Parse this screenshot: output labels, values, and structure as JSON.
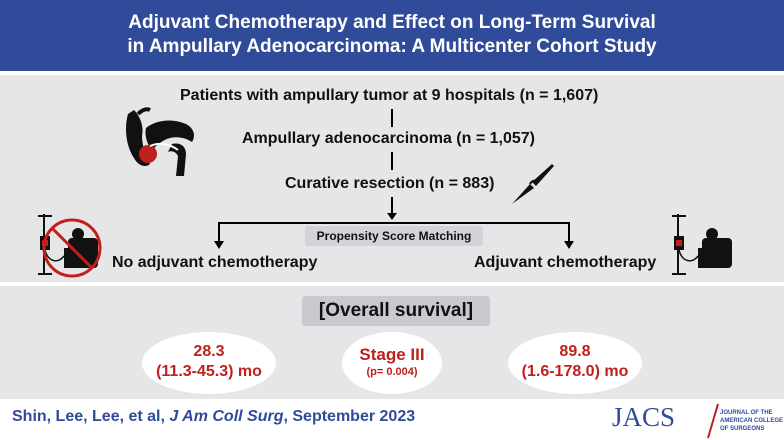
{
  "header": {
    "title_line1": "Adjuvant Chemotherapy and Effect on Long-Term Survival",
    "title_line2": "in Ampullary Adenocarcinoma: A Multicenter Cohort Study"
  },
  "flow": {
    "step1": "Patients with ampullary tumor at 9 hospitals (n = 1,607)",
    "step2": "Ampullary adenocarcinoma (n = 1,057)",
    "step3": "Curative resection (n = 883)",
    "matching_label": "Propensity Score Matching",
    "left_arm": "No adjuvant chemotherapy",
    "right_arm": "Adjuvant chemotherapy"
  },
  "results": {
    "heading": "[Overall survival]",
    "left_value": "28.3",
    "left_range": "(11.3-45.3) mo",
    "center_label": "Stage III",
    "center_p": "(p= 0.004)",
    "right_value": "89.8",
    "right_range": "(1.6-178.0) mo"
  },
  "footer": {
    "citation_authors": "Shin, Lee, Lee, et al, ",
    "citation_journal": "J Am Coll Surg",
    "citation_date": ", September 2023",
    "logo_text": "JACS",
    "logo_sub1": "JOURNAL OF THE",
    "logo_sub2": "AMERICAN COLLEGE",
    "logo_sub3": "OF SURGEONS"
  },
  "colors": {
    "brand_blue": "#2f4b9a",
    "highlight_red": "#c0201c",
    "panel_gray": "#e6e6e8"
  },
  "icons": [
    "pancreas-icon",
    "scalpel-icon",
    "no-chemotherapy-icon",
    "chemotherapy-icon",
    "jacs-logo-icon"
  ]
}
